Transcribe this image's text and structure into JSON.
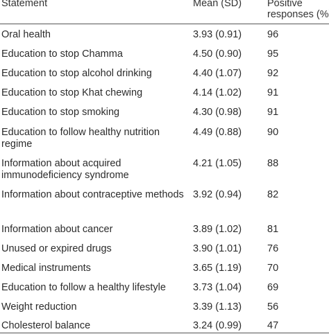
{
  "table": {
    "headers": {
      "statement": "Statement",
      "mean": "Mean (SD)",
      "positive": "Positive\nresponses (%)"
    },
    "rows": [
      {
        "statement": "Oral health",
        "mean": "3.93 (0.91)",
        "positive": "96"
      },
      {
        "statement": "Education to stop Chamma",
        "mean": "4.50 (0.90)",
        "positive": "95"
      },
      {
        "statement": "Education to stop alcohol drinking",
        "mean": "4.40 (1.07)",
        "positive": "92"
      },
      {
        "statement": "Education to stop Khat chewing",
        "mean": "4.14 (1.02)",
        "positive": "91"
      },
      {
        "statement": "Education to stop smoking",
        "mean": "4.30 (0.98)",
        "positive": "91"
      },
      {
        "statement": "Education to follow healthy nutrition regime",
        "mean": "4.49 (0.88)",
        "positive": "90"
      },
      {
        "statement": "Information about acquired immunodeficiency syndrome",
        "mean": "4.21 (1.05)",
        "positive": "88"
      },
      {
        "statement": "Information about contraceptive methods",
        "mean": "3.92 (0.94)",
        "positive": "82"
      },
      {
        "statement": "Information about cancer",
        "mean": "3.89 (1.02)",
        "positive": "81"
      },
      {
        "statement": "Unused or expired drugs",
        "mean": "3.90 (1.01)",
        "positive": "76"
      },
      {
        "statement": "Medical instruments",
        "mean": "3.65 (1.19)",
        "positive": "70"
      },
      {
        "statement": "Education to follow a healthy lifestyle",
        "mean": "3.73 (1.04)",
        "positive": "69"
      },
      {
        "statement": "Weight reduction",
        "mean": "3.39 (1.13)",
        "positive": "56"
      },
      {
        "statement": "Cholesterol balance",
        "mean": "3.24 (0.99)",
        "positive": "47"
      }
    ]
  }
}
